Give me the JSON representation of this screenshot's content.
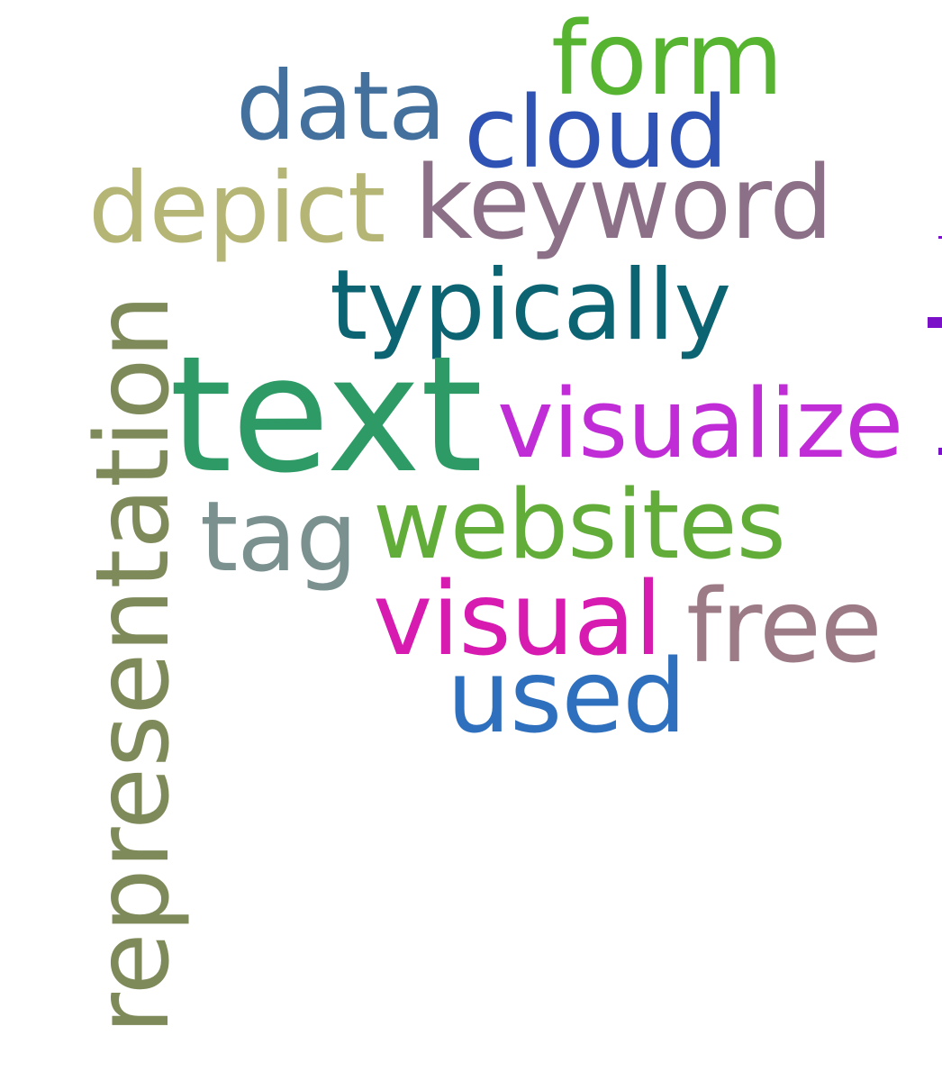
{
  "words": {
    "text": {
      "label": "text",
      "color": "#2e9b66"
    },
    "representation": {
      "label": "representation",
      "color": "#7e8a5a"
    },
    "visualize": {
      "label": "visualize",
      "color": "#c02dd6"
    },
    "typically": {
      "label": "typically",
      "color": "#0c6472"
    },
    "keyword": {
      "label": "keyword",
      "color": "#8c7087"
    },
    "websites": {
      "label": "websites",
      "color": "#62ad3a"
    },
    "visual": {
      "label": "visual",
      "color": "#d71bb0"
    },
    "form": {
      "label": "form",
      "color": "#56b431"
    },
    "cloud": {
      "label": "cloud",
      "color": "#2f52b5"
    },
    "depict": {
      "label": "depict",
      "color": "#b5b575"
    },
    "data": {
      "label": "data",
      "color": "#43709c"
    },
    "tag": {
      "label": "tag",
      "color": "#7a918f"
    },
    "free": {
      "label": "free",
      "color": "#9c7b87"
    },
    "used": {
      "label": "used",
      "color": "#2f70be"
    }
  },
  "edge_fragments": {
    "color": "#7a10c8"
  }
}
